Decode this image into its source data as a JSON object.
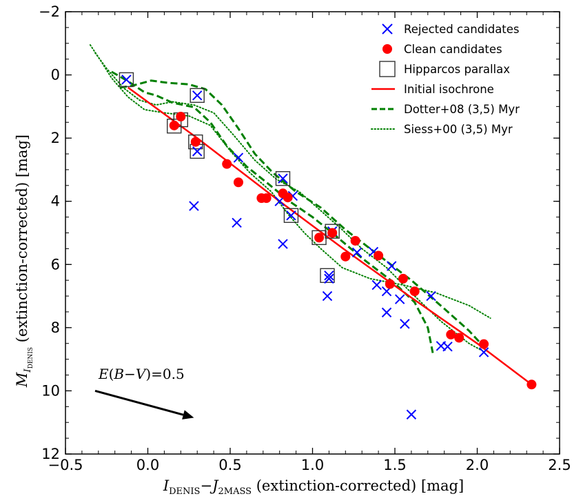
{
  "chart_data": {
    "type": "scatter",
    "xlabel": "I_DENIS − J_2MASS (extinction-corrected) [mag]",
    "ylabel": "M_I_DENIS (extinction-corrected) [mag]",
    "xlabel_parts": {
      "main": "I",
      "sub1": "DENIS",
      "dash": "−",
      "main2": "J",
      "sub2": "2MASS",
      "rest": " (extinction-corrected) [mag]"
    },
    "ylabel_parts": {
      "main": "M",
      "sub": "I",
      "subsub": "DENIS",
      "rest": " (extinction-corrected) [mag]"
    },
    "xlim": [
      -0.5,
      2.5
    ],
    "ylim": [
      12,
      -2
    ],
    "xticks": [
      -0.5,
      0.0,
      0.5,
      1.0,
      1.5,
      2.0,
      2.5
    ],
    "xtick_labels": [
      "−0.5",
      "0.0",
      "0.5",
      "1.0",
      "1.5",
      "2.0",
      "2.5"
    ],
    "yticks": [
      -2,
      0,
      2,
      4,
      6,
      8,
      10,
      12
    ],
    "ytick_labels": [
      "−2",
      "0",
      "2",
      "4",
      "6",
      "8",
      "10",
      "12"
    ],
    "grid": false,
    "legend_position": "top-right",
    "colors": {
      "rejected": "#0000ff",
      "clean": "#ff0000",
      "isochrone": "#ff0000",
      "dotter": "#008000",
      "siess": "#008000",
      "hipparcos": "#333333",
      "arrow": "#000000"
    },
    "series": [
      {
        "name": "Rejected candidates",
        "marker": "x",
        "points": [
          [
            -0.13,
            0.15
          ],
          [
            0.3,
            0.65
          ],
          [
            0.3,
            2.42
          ],
          [
            0.28,
            4.15
          ],
          [
            0.55,
            2.62
          ],
          [
            0.54,
            4.68
          ],
          [
            0.82,
            3.28
          ],
          [
            0.88,
            3.83
          ],
          [
            0.8,
            4.0
          ],
          [
            0.87,
            4.45
          ],
          [
            0.82,
            5.35
          ],
          [
            1.12,
            4.95
          ],
          [
            1.1,
            6.35
          ],
          [
            1.1,
            6.45
          ],
          [
            1.09,
            7.0
          ],
          [
            1.27,
            5.62
          ],
          [
            1.37,
            5.6
          ],
          [
            1.39,
            6.65
          ],
          [
            1.48,
            6.05
          ],
          [
            1.45,
            6.85
          ],
          [
            1.53,
            7.1
          ],
          [
            1.45,
            7.52
          ],
          [
            1.56,
            7.88
          ],
          [
            1.72,
            7.0
          ],
          [
            1.78,
            8.58
          ],
          [
            1.82,
            8.6
          ],
          [
            2.04,
            8.78
          ],
          [
            1.6,
            10.75
          ]
        ]
      },
      {
        "name": "Clean candidates",
        "marker": "o",
        "points": [
          [
            0.16,
            1.6
          ],
          [
            0.2,
            1.32
          ],
          [
            0.29,
            2.12
          ],
          [
            0.48,
            2.82
          ],
          [
            0.55,
            3.4
          ],
          [
            0.69,
            3.9
          ],
          [
            0.72,
            3.9
          ],
          [
            0.82,
            3.75
          ],
          [
            0.85,
            3.88
          ],
          [
            1.04,
            5.15
          ],
          [
            1.12,
            5.0
          ],
          [
            1.2,
            5.75
          ],
          [
            1.26,
            5.25
          ],
          [
            1.4,
            5.72
          ],
          [
            1.47,
            6.62
          ],
          [
            1.55,
            6.45
          ],
          [
            1.62,
            6.85
          ],
          [
            1.84,
            8.22
          ],
          [
            1.89,
            8.32
          ],
          [
            2.04,
            8.52
          ],
          [
            2.33,
            9.8
          ]
        ]
      },
      {
        "name": "Hipparcos parallax",
        "marker": "s",
        "points": [
          [
            -0.13,
            0.15
          ],
          [
            0.3,
            0.65
          ],
          [
            0.2,
            1.42
          ],
          [
            0.16,
            1.62
          ],
          [
            0.29,
            2.12
          ],
          [
            0.3,
            2.42
          ],
          [
            0.82,
            3.28
          ],
          [
            0.87,
            4.45
          ],
          [
            1.04,
            5.15
          ],
          [
            1.12,
            4.95
          ],
          [
            1.09,
            6.35
          ]
        ]
      },
      {
        "name": "Initial isochrone",
        "style": "solid",
        "line": [
          [
            -0.12,
            0.4
          ],
          [
            0.3,
            2.0
          ],
          [
            0.8,
            4.0
          ],
          [
            1.2,
            5.55
          ],
          [
            1.6,
            7.05
          ],
          [
            2.0,
            8.5
          ],
          [
            2.33,
            9.8
          ]
        ]
      },
      {
        "name": "Dotter+08 (3,5) Myr",
        "style": "dashed",
        "lines": [
          [
            [
              -0.22,
              -0.1
            ],
            [
              -0.12,
              0.2
            ],
            [
              -0.02,
              0.55
            ],
            [
              0.05,
              0.65
            ],
            [
              0.15,
              0.88
            ],
            [
              0.28,
              1.02
            ],
            [
              0.38,
              1.5
            ],
            [
              0.48,
              2.25
            ],
            [
              0.6,
              2.9
            ],
            [
              0.72,
              3.4
            ],
            [
              0.86,
              4.0
            ],
            [
              1.0,
              4.5
            ],
            [
              1.12,
              5.0
            ],
            [
              1.3,
              5.8
            ],
            [
              1.5,
              6.6
            ],
            [
              1.62,
              7.2
            ],
            [
              1.7,
              8.0
            ],
            [
              1.73,
              8.8
            ]
          ],
          [
            [
              -0.17,
              0.4
            ],
            [
              -0.1,
              0.35
            ],
            [
              0.02,
              0.18
            ],
            [
              0.12,
              0.25
            ],
            [
              0.25,
              0.3
            ],
            [
              0.35,
              0.45
            ],
            [
              0.45,
              0.95
            ],
            [
              0.55,
              1.7
            ],
            [
              0.65,
              2.5
            ],
            [
              0.76,
              3.1
            ],
            [
              0.9,
              3.7
            ],
            [
              1.05,
              4.2
            ],
            [
              1.2,
              4.9
            ],
            [
              1.4,
              5.7
            ],
            [
              1.6,
              6.5
            ],
            [
              1.8,
              7.4
            ],
            [
              1.95,
              8.1
            ],
            [
              2.03,
              8.55
            ]
          ]
        ]
      },
      {
        "name": "Siess+00 (3,5) Myr",
        "style": "dotted",
        "lines": [
          [
            [
              -0.35,
              -0.95
            ],
            [
              -0.28,
              -0.4
            ],
            [
              -0.22,
              0.1
            ],
            [
              -0.12,
              0.7
            ],
            [
              -0.02,
              1.1
            ],
            [
              0.1,
              1.2
            ],
            [
              0.25,
              1.3
            ],
            [
              0.38,
              1.6
            ],
            [
              0.5,
              2.4
            ],
            [
              0.62,
              3.1
            ],
            [
              0.75,
              3.7
            ],
            [
              0.85,
              4.4
            ],
            [
              0.95,
              5.0
            ],
            [
              1.05,
              5.5
            ],
            [
              1.18,
              6.1
            ],
            [
              1.35,
              6.45
            ],
            [
              1.55,
              6.65
            ],
            [
              1.75,
              6.9
            ],
            [
              1.95,
              7.3
            ],
            [
              2.08,
              7.7
            ]
          ],
          [
            [
              -0.32,
              -0.7
            ],
            [
              -0.25,
              -0.2
            ],
            [
              -0.15,
              0.4
            ],
            [
              -0.05,
              0.8
            ],
            [
              0.05,
              0.95
            ],
            [
              0.15,
              0.85
            ],
            [
              0.28,
              0.95
            ],
            [
              0.4,
              1.2
            ],
            [
              0.52,
              1.9
            ],
            [
              0.65,
              2.7
            ],
            [
              0.78,
              3.3
            ],
            [
              0.92,
              3.7
            ],
            [
              1.05,
              4.3
            ],
            [
              1.18,
              4.9
            ],
            [
              1.3,
              5.5
            ],
            [
              1.45,
              6.1
            ],
            [
              1.6,
              6.9
            ],
            [
              1.78,
              7.8
            ],
            [
              1.95,
              8.5
            ],
            [
              2.02,
              8.7
            ]
          ]
        ]
      }
    ],
    "legend": [
      {
        "label": "Rejected candidates",
        "marker": "x"
      },
      {
        "label": "Clean candidates",
        "marker": "o"
      },
      {
        "label": "Hipparcos parallax",
        "marker": "s"
      },
      {
        "label": "Initial isochrone",
        "marker": "solid"
      },
      {
        "label": "Dotter+08 (3,5) Myr",
        "marker": "dashed"
      },
      {
        "label": "Siess+00 (3,5) Myr",
        "marker": "dotted"
      }
    ],
    "annotation": {
      "text": "E(B−V)=0.5",
      "parts": {
        "a": "E",
        "b": "(",
        "c": "B",
        "d": "−",
        "e": "V",
        "f": ")=0.5"
      },
      "arrow_from": [
        -0.32,
        10.0
      ],
      "arrow_to": [
        0.28,
        10.85
      ]
    }
  }
}
